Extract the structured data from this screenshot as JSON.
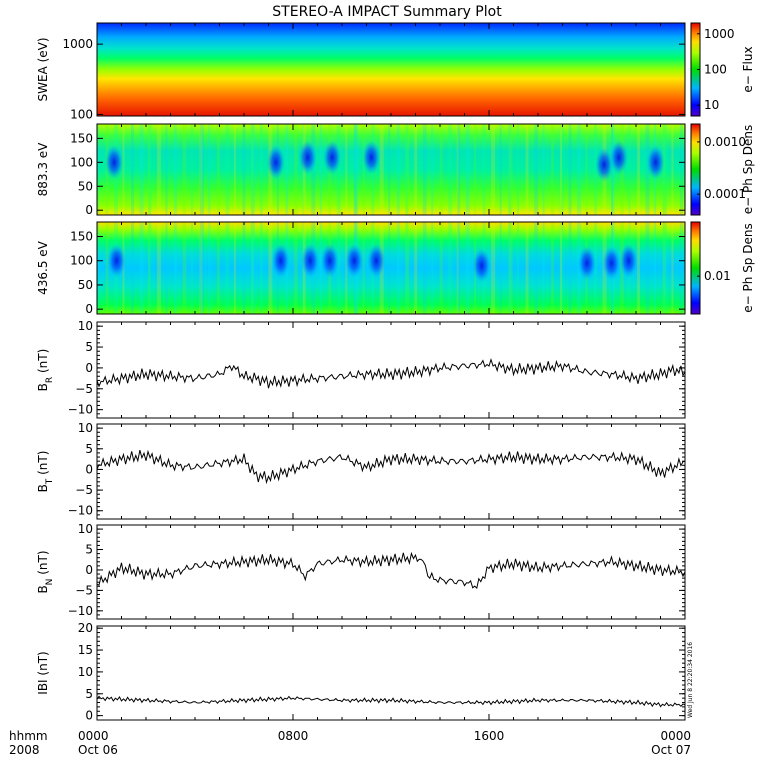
{
  "title": "STEREO-A IMPACT Summary Plot",
  "stamp": "Wed Jun  8 22:20:34 2016",
  "x_axis": {
    "unit_label": "hhmm",
    "year_label": "2008",
    "ticks": [
      {
        "t": 0,
        "label": "0000",
        "date": "Oct 06"
      },
      {
        "t": 8,
        "label": "0800",
        "date": ""
      },
      {
        "t": 16,
        "label": "1600",
        "date": ""
      },
      {
        "t": 24,
        "label": "0000",
        "date": "Oct 07"
      }
    ]
  },
  "chart_data": [
    {
      "type": "heatmap",
      "name": "swea",
      "ylabel": "SWEA (eV)",
      "yscale": "log",
      "ylim": [
        95,
        2000
      ],
      "yticks": [
        {
          "v": 100,
          "label": "100"
        },
        {
          "v": 1000,
          "label": "1000"
        }
      ],
      "colorbar": {
        "label": "e− Flux",
        "scale": "log",
        "range": [
          5,
          2000
        ],
        "ticks": [
          {
            "v": 10,
            "label": "10"
          },
          {
            "v": 100,
            "label": "100"
          },
          {
            "v": 1000,
            "label": "1000"
          }
        ]
      }
    },
    {
      "type": "heatmap",
      "name": "pad883",
      "ylabel": "883.3 eV",
      "ylim": [
        -10,
        180
      ],
      "yticks": [
        {
          "v": 0,
          "label": "0"
        },
        {
          "v": 50,
          "label": "50"
        },
        {
          "v": 100,
          "label": "100"
        },
        {
          "v": 150,
          "label": "150"
        }
      ],
      "colorbar": {
        "label": "e− Ph Sp Dens",
        "scale": "log",
        "range": [
          4e-05,
          0.0022
        ],
        "ticks": [
          {
            "v": 0.0001,
            "label": "0.0001"
          },
          {
            "v": 0.001,
            "label": "0.0010"
          }
        ]
      },
      "depletions": [
        {
          "t": 0.7,
          "a": 100
        },
        {
          "t": 7.3,
          "a": 100
        },
        {
          "t": 8.6,
          "a": 110
        },
        {
          "t": 9.6,
          "a": 110
        },
        {
          "t": 11.2,
          "a": 110
        },
        {
          "t": 20.7,
          "a": 95
        },
        {
          "t": 21.3,
          "a": 110
        },
        {
          "t": 22.8,
          "a": 100
        }
      ]
    },
    {
      "type": "heatmap",
      "name": "pad436",
      "ylabel": "436.5 eV",
      "ylim": [
        -10,
        180
      ],
      "yticks": [
        {
          "v": 0,
          "label": "0"
        },
        {
          "v": 50,
          "label": "50"
        },
        {
          "v": 100,
          "label": "100"
        },
        {
          "v": 150,
          "label": "150"
        }
      ],
      "colorbar": {
        "label": "e− Ph Sp Dens",
        "scale": "log",
        "range": [
          0.002,
          0.1
        ],
        "ticks": [
          {
            "v": 0.01,
            "label": "0.01"
          }
        ]
      },
      "depletions": [
        {
          "t": 0.8,
          "a": 100
        },
        {
          "t": 7.5,
          "a": 100
        },
        {
          "t": 8.7,
          "a": 100
        },
        {
          "t": 9.5,
          "a": 100
        },
        {
          "t": 10.5,
          "a": 100
        },
        {
          "t": 11.4,
          "a": 100
        },
        {
          "t": 15.7,
          "a": 90
        },
        {
          "t": 20.0,
          "a": 95
        },
        {
          "t": 21.0,
          "a": 95
        },
        {
          "t": 21.7,
          "a": 100
        }
      ]
    },
    {
      "type": "line",
      "name": "br",
      "ylabel": "B",
      "ylabel_sub": "R",
      "ylabel_unit": " (nT)",
      "ylim": [
        -12,
        11
      ],
      "yticks": [
        {
          "v": -10,
          "label": "−10"
        },
        {
          "v": -5,
          "label": "−5"
        },
        {
          "v": 0,
          "label": "0"
        },
        {
          "v": 5,
          "label": "5"
        },
        {
          "v": 10,
          "label": "10"
        }
      ],
      "x": [
        0,
        1,
        2,
        3,
        4,
        5,
        5.5,
        6,
        6.5,
        7,
        8,
        9,
        10,
        11,
        12,
        13,
        14,
        15,
        16,
        17,
        18,
        19,
        20,
        21,
        22,
        23,
        23.5,
        24
      ],
      "y": [
        -3.5,
        -2.5,
        -1.5,
        -2,
        -2.5,
        -1.5,
        0.5,
        -2,
        -2.5,
        -3.5,
        -3,
        -2.5,
        -2,
        -1.5,
        -1.5,
        -1,
        0,
        0.5,
        1,
        -0.5,
        0,
        0.5,
        -1,
        -1.5,
        -2.5,
        -1.5,
        -0.5,
        -1
      ]
    },
    {
      "type": "line",
      "name": "bt",
      "ylabel": "B",
      "ylabel_sub": "T",
      "ylabel_unit": " (nT)",
      "ylim": [
        -12,
        11
      ],
      "yticks": [
        {
          "v": -10,
          "label": "−10"
        },
        {
          "v": -5,
          "label": "−5"
        },
        {
          "v": 0,
          "label": "0"
        },
        {
          "v": 5,
          "label": "5"
        },
        {
          "v": 10,
          "label": "10"
        }
      ],
      "x": [
        0,
        1,
        2,
        3,
        4,
        5,
        6,
        6.5,
        7,
        8,
        9,
        10,
        11,
        12,
        13,
        14,
        15,
        16,
        17,
        18,
        19,
        20,
        21,
        22,
        23,
        24
      ],
      "y": [
        1,
        2.5,
        3.5,
        1,
        0.5,
        1.5,
        2.5,
        -1.5,
        -2,
        0,
        2,
        3,
        0.5,
        2.5,
        2.5,
        2,
        2,
        2.5,
        3,
        2.5,
        2.5,
        3,
        3,
        2.5,
        -1,
        2
      ]
    },
    {
      "type": "line",
      "name": "bn",
      "ylabel": "B",
      "ylabel_sub": "N",
      "ylabel_unit": " (nT)",
      "ylim": [
        -12,
        11
      ],
      "yticks": [
        {
          "v": -10,
          "label": "−10"
        },
        {
          "v": -5,
          "label": "−5"
        },
        {
          "v": 0,
          "label": "0"
        },
        {
          "v": 5,
          "label": "5"
        },
        {
          "v": 10,
          "label": "10"
        }
      ],
      "x": [
        0,
        1,
        2,
        3,
        4,
        5,
        6,
        7,
        8,
        8.5,
        9,
        10,
        11,
        12,
        13,
        13.3,
        13.5,
        14,
        15,
        15.5,
        16,
        17,
        18,
        19,
        20,
        21,
        22,
        23,
        24
      ],
      "y": [
        -3.5,
        0.5,
        -1,
        -1,
        1,
        1.5,
        2,
        2.5,
        1.5,
        -1.5,
        1.5,
        2.5,
        2,
        2.5,
        3,
        3,
        -1.5,
        -2.5,
        -3,
        -4,
        0.5,
        1.5,
        0.5,
        1,
        1.5,
        2,
        1,
        0,
        -0.5
      ]
    },
    {
      "type": "line",
      "name": "bmag",
      "ylabel": "IBI (nT)",
      "ylim": [
        -1,
        20.5
      ],
      "yticks": [
        {
          "v": 0,
          "label": "0"
        },
        {
          "v": 5,
          "label": "5"
        },
        {
          "v": 10,
          "label": "10"
        },
        {
          "v": 15,
          "label": "15"
        },
        {
          "v": 20,
          "label": "20"
        }
      ],
      "x": [
        0,
        2,
        4,
        6,
        8,
        10,
        12,
        14,
        16,
        18,
        20,
        22,
        23,
        24
      ],
      "y": [
        4,
        3.5,
        3,
        3.5,
        4,
        3.5,
        3.5,
        3,
        3,
        3.5,
        3.5,
        3,
        2.5,
        2.5
      ]
    }
  ]
}
